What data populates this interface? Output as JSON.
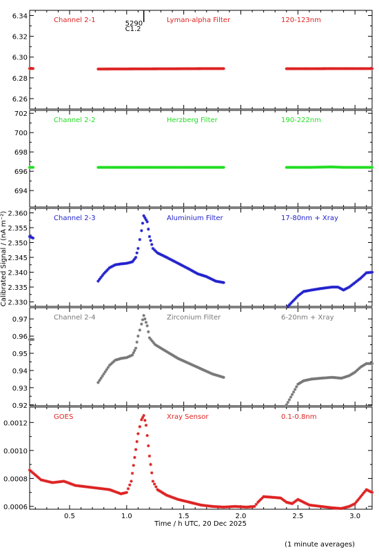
{
  "footnote": "(1 minute averages)",
  "chart_data": {
    "type": "scatter",
    "xlabel": "Time / h UTC, 20 Dec 2025",
    "ylabel": "Calibrated Signal / (nA m⁻²)",
    "xlim": [
      0.15,
      3.15
    ],
    "xticks": [
      0.5,
      1.0,
      1.5,
      2.0,
      2.5,
      3.0
    ],
    "xtick_labels": [
      "0.5",
      "1.0",
      "1.5",
      "2.0",
      "2.5",
      "3.0"
    ],
    "flare_marker": {
      "x": 1.15,
      "labels": [
        "5290",
        "C1.2"
      ]
    },
    "panels": [
      {
        "name": "Channel 2-1",
        "filter": "Lyman-alpha Filter",
        "band": "120-123nm",
        "color": "#dd2222",
        "ylim": [
          6.25,
          6.345
        ],
        "yticks": [
          6.26,
          6.28,
          6.3,
          6.32,
          6.34
        ],
        "ytick_labels": [
          "6.26",
          "6.28",
          "6.30",
          "6.32",
          "6.34"
        ],
        "segments": [
          {
            "x": [
              0.15,
              0.18
            ],
            "y": [
              6.289,
              6.289
            ]
          },
          {
            "x": [
              0.75,
              1.0,
              1.25,
              1.5,
              1.7,
              1.85
            ],
            "y": [
              6.2885,
              6.2886,
              6.2887,
              6.2888,
              6.2889,
              6.2889
            ]
          },
          {
            "x": [
              2.4,
              2.6,
              2.8,
              3.0,
              3.15
            ],
            "y": [
              6.2888,
              6.2888,
              6.2889,
              6.2889,
              6.2889
            ]
          }
        ]
      },
      {
        "name": "Channel 2-2",
        "filter": "Herzberg Filter",
        "band": "190-222nm",
        "color": "#22dd22",
        "ylim": [
          692.3,
          702.3
        ],
        "yticks": [
          694,
          696,
          698,
          700,
          702
        ],
        "ytick_labels": [
          "694",
          "696",
          "698",
          "700",
          "702"
        ],
        "segments": [
          {
            "x": [
              0.15,
              0.18
            ],
            "y": [
              696.4,
              696.4
            ]
          },
          {
            "x": [
              0.75,
              1.0,
              1.25,
              1.5,
              1.7,
              1.85
            ],
            "y": [
              696.4,
              696.4,
              696.4,
              696.4,
              696.4,
              696.4
            ]
          },
          {
            "x": [
              2.4,
              2.6,
              2.8,
              2.9,
              3.0,
              3.15
            ],
            "y": [
              696.4,
              696.4,
              696.45,
              696.4,
              696.4,
              696.4
            ]
          }
        ]
      },
      {
        "name": "Channel 2-3",
        "filter": "Aluminium Filter",
        "band": "17-80nm + Xray",
        "color": "#2222cc",
        "ylim": [
          2.3285,
          2.3615
        ],
        "yticks": [
          2.33,
          2.335,
          2.34,
          2.345,
          2.35,
          2.355,
          2.36
        ],
        "ytick_labels": [
          "2.330",
          "2.335",
          "2.340",
          "2.345",
          "2.350",
          "2.355",
          "2.360"
        ],
        "segments": [
          {
            "x": [
              0.15,
              0.18
            ],
            "y": [
              2.352,
              2.3515
            ]
          },
          {
            "x": [
              0.75,
              0.8,
              0.85,
              0.9,
              0.95,
              1.0,
              1.05,
              1.08,
              1.1,
              1.13,
              1.15,
              1.18,
              1.2,
              1.23,
              1.27,
              1.35,
              1.45,
              1.55,
              1.62,
              1.7,
              1.78,
              1.85
            ],
            "y": [
              2.337,
              2.3395,
              2.3415,
              2.3425,
              2.3428,
              2.343,
              2.3435,
              2.345,
              2.348,
              2.354,
              2.359,
              2.357,
              2.352,
              2.348,
              2.3465,
              2.345,
              2.343,
              2.341,
              2.3395,
              2.3385,
              2.337,
              2.3365
            ]
          },
          {
            "x": [
              2.4,
              2.45,
              2.5,
              2.55,
              2.62,
              2.7,
              2.8,
              2.85,
              2.9,
              2.95,
              3.0,
              3.05,
              3.1,
              3.15
            ],
            "y": [
              2.328,
              2.33,
              2.332,
              2.3335,
              2.334,
              2.3345,
              2.335,
              2.335,
              2.334,
              2.335,
              2.3365,
              2.338,
              2.3398,
              2.34
            ]
          }
        ]
      },
      {
        "name": "Channel 2-4",
        "filter": "Zirconium Filter",
        "band": "6-20nm + Xray",
        "color": "#777777",
        "ylim": [
          0.9195,
          0.9765
        ],
        "yticks": [
          0.92,
          0.93,
          0.94,
          0.95,
          0.96,
          0.97
        ],
        "ytick_labels": [
          "0.92",
          "0.93",
          "0.94",
          "0.95",
          "0.96",
          "0.97"
        ],
        "segments": [
          {
            "x": [
              0.15,
              0.18
            ],
            "y": [
              0.958,
              0.958
            ]
          },
          {
            "x": [
              0.75,
              0.8,
              0.85,
              0.9,
              0.95,
              1.0,
              1.05,
              1.08,
              1.1,
              1.13,
              1.15,
              1.18,
              1.2,
              1.25,
              1.35,
              1.45,
              1.55,
              1.65,
              1.75,
              1.85
            ],
            "y": [
              0.933,
              0.938,
              0.943,
              0.946,
              0.947,
              0.9475,
              0.949,
              0.953,
              0.96,
              0.967,
              0.972,
              0.966,
              0.959,
              0.955,
              0.951,
              0.947,
              0.944,
              0.941,
              0.938,
              0.936
            ]
          },
          {
            "x": [
              2.4,
              2.45,
              2.5,
              2.55,
              2.62,
              2.7,
              2.8,
              2.88,
              2.95,
              3.0,
              3.05,
              3.1,
              3.15
            ],
            "y": [
              0.92,
              0.926,
              0.932,
              0.934,
              0.935,
              0.9355,
              0.936,
              0.9355,
              0.937,
              0.939,
              0.942,
              0.944,
              0.944
            ]
          }
        ]
      },
      {
        "name": "GOES",
        "filter": "Xray Sensor",
        "band": "0.1-0.8nm",
        "color": "#dd2222",
        "ylim": [
          0.00058,
          0.00131
        ],
        "yticks": [
          0.0006,
          0.0008,
          0.001,
          0.0012
        ],
        "ytick_labels": [
          "0.0006",
          "0.0008",
          "0.0010",
          "0.0012"
        ],
        "segments": [
          {
            "x": [
              0.15,
              0.25,
              0.35,
              0.45,
              0.55,
              0.65,
              0.75,
              0.85,
              0.95,
              1.0,
              1.04,
              1.07,
              1.1,
              1.13,
              1.15,
              1.17,
              1.2,
              1.23,
              1.27,
              1.35,
              1.45,
              1.55,
              1.65,
              1.75,
              1.85,
              1.95,
              2.05,
              2.12,
              2.15,
              2.2,
              2.28,
              2.35,
              2.4,
              2.45,
              2.5,
              2.55,
              2.6,
              2.7,
              2.8,
              2.88,
              2.95,
              3.0,
              3.05,
              3.1,
              3.15
            ],
            "y": [
              0.00086,
              0.00079,
              0.00077,
              0.00078,
              0.00075,
              0.00074,
              0.00073,
              0.00072,
              0.00069,
              0.0007,
              0.00078,
              0.00095,
              0.00112,
              0.00122,
              0.00125,
              0.00118,
              0.00096,
              0.00078,
              0.00072,
              0.00068,
              0.00065,
              0.00063,
              0.00061,
              0.0006,
              0.000595,
              0.0006,
              0.000595,
              0.0006,
              0.00063,
              0.00067,
              0.000665,
              0.00066,
              0.00063,
              0.00062,
              0.00065,
              0.00063,
              0.00061,
              0.0006,
              0.00059,
              0.000585,
              0.0006,
              0.00062,
              0.00067,
              0.00072,
              0.0007
            ]
          }
        ]
      }
    ]
  }
}
